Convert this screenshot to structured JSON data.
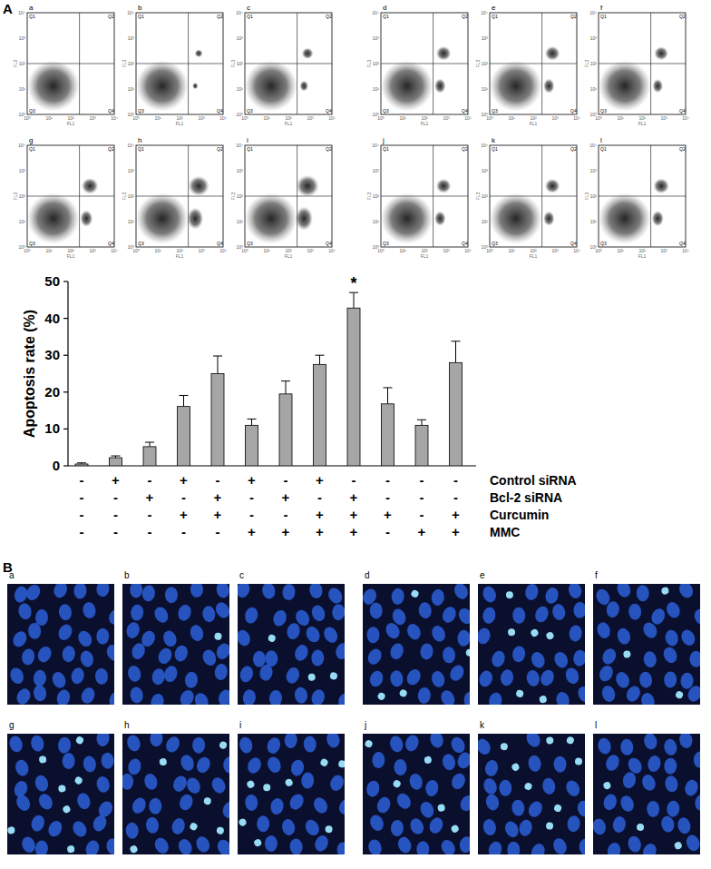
{
  "figure_labels": {
    "panel_a": "A",
    "panel_b": "B"
  },
  "flow_panels": {
    "labels": [
      "a",
      "b",
      "c",
      "d",
      "e",
      "f",
      "g",
      "h",
      "i",
      "j",
      "k",
      "l"
    ],
    "x_label": "FL1",
    "y_label": "FL3",
    "quadrants": [
      "Q1",
      "Q2",
      "Q3",
      "Q4"
    ],
    "ticks": [
      "10⁰",
      "10¹",
      "10²",
      "10³",
      "10⁴"
    ]
  },
  "microscopy_panels": {
    "labels": [
      "a",
      "b",
      "c",
      "d",
      "e",
      "f",
      "g",
      "h",
      "i",
      "j",
      "k",
      "l"
    ]
  },
  "chart_data": {
    "type": "bar",
    "categories": [
      null,
      null,
      null,
      null,
      null,
      null,
      null,
      null,
      null,
      null,
      null,
      null
    ],
    "values": [
      0.5,
      2.2,
      5.2,
      16.1,
      25.0,
      11.0,
      19.5,
      27.5,
      42.8,
      16.8,
      11.0,
      28.0
    ],
    "errors": [
      0.3,
      0.5,
      1.2,
      3.0,
      4.8,
      1.7,
      3.5,
      2.5,
      4.2,
      4.4,
      1.5,
      5.8
    ],
    "color": "#a6a6a6",
    "ylim": [
      0,
      50
    ],
    "yticks": [
      0,
      10,
      20,
      30,
      40,
      50
    ],
    "grid": false,
    "y_label": "Apoptosis rate (%)",
    "annotations": [
      {
        "text": "*",
        "category_index": 8
      }
    ],
    "treatments": [
      {
        "name": "Control siRNA",
        "signs": [
          "-",
          "+",
          "-",
          "+",
          "-",
          "+",
          "-",
          "+",
          "-",
          "-",
          "-",
          "-"
        ]
      },
      {
        "name": "Bcl-2 siRNA",
        "signs": [
          "-",
          "-",
          "+",
          "-",
          "+",
          "-",
          "+",
          "-",
          "+",
          "-",
          "-",
          "-"
        ]
      },
      {
        "name": "Curcumin",
        "signs": [
          "-",
          "-",
          "-",
          "+",
          "+",
          "-",
          "-",
          "+",
          "+",
          "+",
          "-",
          "+"
        ]
      },
      {
        "name": "MMC",
        "signs": [
          "-",
          "-",
          "-",
          "-",
          "-",
          "+",
          "+",
          "+",
          "+",
          "-",
          "+",
          "+"
        ]
      }
    ]
  }
}
